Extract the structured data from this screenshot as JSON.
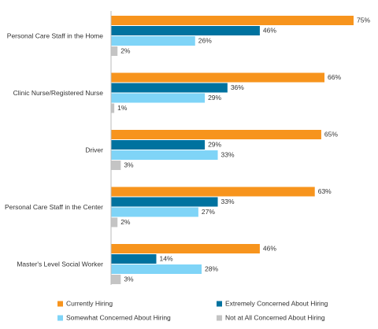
{
  "chart_data": {
    "type": "bar",
    "orientation": "horizontal",
    "categories": [
      "Personal Care Staff in the Home",
      "Clinic Nurse/Registered Nurse",
      "Driver",
      "Personal Care Staff in the Center",
      "Master's Level Social Worker"
    ],
    "series": [
      {
        "name": "Currently Hiring",
        "color": "#f7941d",
        "values": [
          75,
          66,
          65,
          63,
          46
        ],
        "value_labels": [
          "75%",
          "66%",
          "65%",
          "63%",
          "46%"
        ]
      },
      {
        "name": "Extremely Concerned About Hiring",
        "color": "#00729f",
        "values": [
          46,
          36,
          29,
          33,
          14
        ],
        "value_labels": [
          "46%",
          "36%",
          "29%",
          "33%",
          "14%"
        ]
      },
      {
        "name": "Somewhat Concerned About Hiring",
        "color": "#7fd4f7",
        "values": [
          26,
          29,
          33,
          27,
          28
        ],
        "value_labels": [
          "26%",
          "29%",
          "33%",
          "27%",
          "28%"
        ]
      },
      {
        "name": "Not at All Concerned About Hiring",
        "color": "#c4c4c4",
        "values": [
          2,
          1,
          3,
          2,
          3
        ],
        "value_labels": [
          "2%",
          "1%",
          "3%",
          "2%",
          "3%"
        ]
      }
    ],
    "legend": "bottom"
  }
}
